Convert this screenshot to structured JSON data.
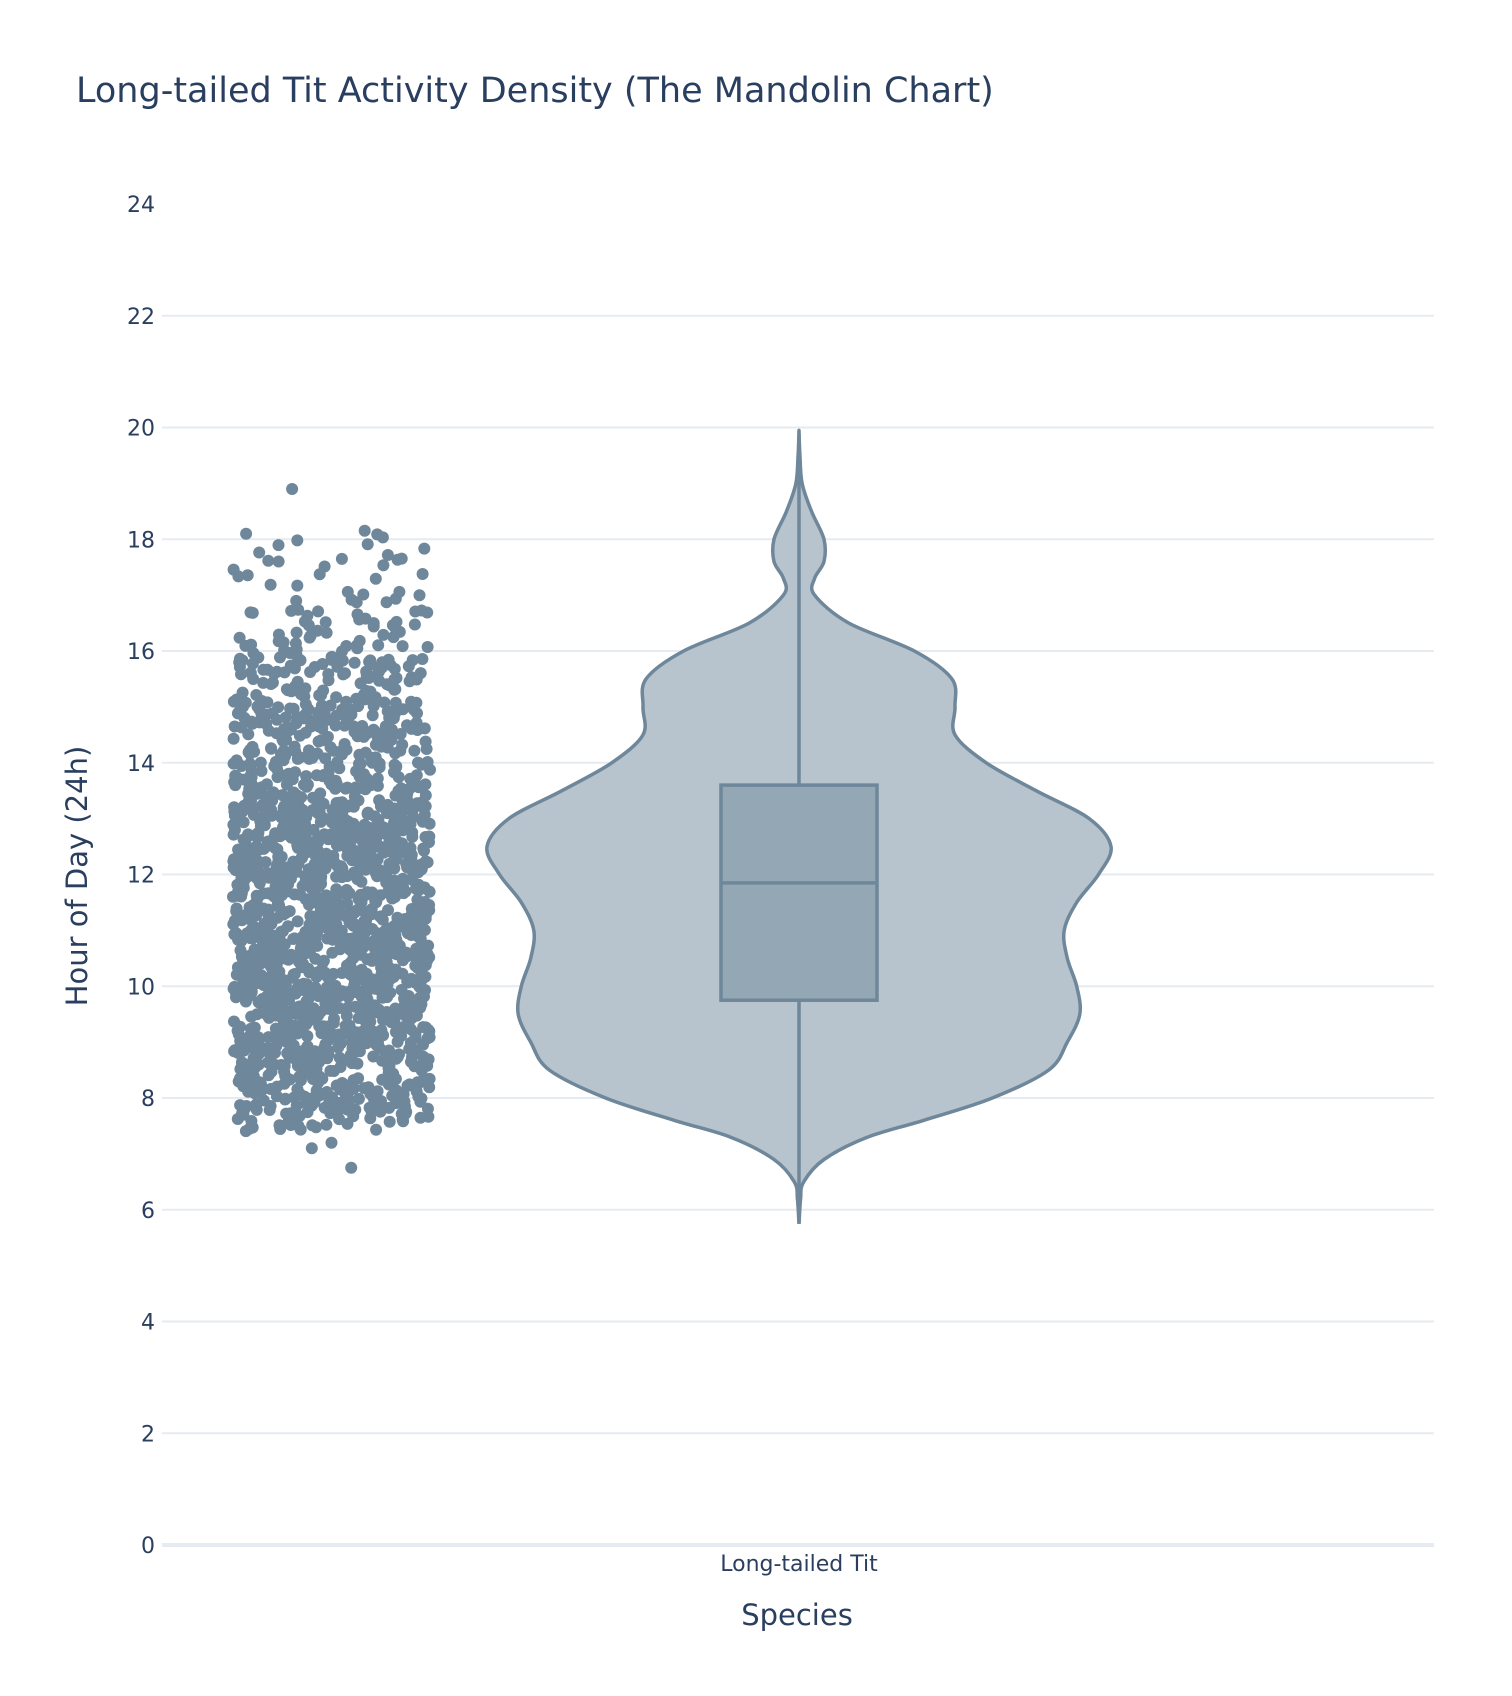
{
  "chart_data": {
    "type": "violin",
    "title": "Long-tailed Tit Activity Density (The Mandolin Chart)",
    "xlabel": "Species",
    "ylabel": "Hour of Day (24h)",
    "categories": [
      "Long-tailed Tit"
    ],
    "ylim": [
      0,
      24
    ],
    "yticks": [
      "0",
      "2",
      "4",
      "6",
      "8",
      "10",
      "12",
      "14",
      "16",
      "18",
      "20",
      "22",
      "24"
    ],
    "grid": true,
    "legend": "none",
    "colors": {
      "fill": "#b7c3cd",
      "line": "#6e879a",
      "box": "#94a7b5",
      "points": "#6e879a"
    },
    "series": [
      {
        "category": "Long-tailed Tit",
        "box": {
          "q1": 9.75,
          "median": 11.85,
          "q3": 13.6,
          "whisker_low": 6.75,
          "whisker_high": 18.9
        },
        "violin_range": [
          5.75,
          19.9
        ],
        "density_profile": [
          [
            5.75,
            0.0
          ],
          [
            6.2,
            0.005
          ],
          [
            6.5,
            0.015
          ],
          [
            6.9,
            0.08
          ],
          [
            7.3,
            0.22
          ],
          [
            7.6,
            0.4
          ],
          [
            8.0,
            0.62
          ],
          [
            8.5,
            0.8
          ],
          [
            9.0,
            0.86
          ],
          [
            9.5,
            0.9
          ],
          [
            10.0,
            0.89
          ],
          [
            10.5,
            0.86
          ],
          [
            11.0,
            0.85
          ],
          [
            11.5,
            0.89
          ],
          [
            12.0,
            0.96
          ],
          [
            12.5,
            1.0
          ],
          [
            13.0,
            0.93
          ],
          [
            13.5,
            0.76
          ],
          [
            14.0,
            0.6
          ],
          [
            14.5,
            0.5
          ],
          [
            15.0,
            0.5
          ],
          [
            15.5,
            0.49
          ],
          [
            16.0,
            0.37
          ],
          [
            16.5,
            0.16
          ],
          [
            17.0,
            0.05
          ],
          [
            17.3,
            0.05
          ],
          [
            17.6,
            0.08
          ],
          [
            18.0,
            0.08
          ],
          [
            18.5,
            0.04
          ],
          [
            19.0,
            0.01
          ],
          [
            19.5,
            0.003
          ],
          [
            19.9,
            0.0
          ]
        ],
        "point_count": 1800,
        "point_outliers": [
          18.9,
          7.1,
          7.2,
          6.75
        ]
      }
    ]
  }
}
